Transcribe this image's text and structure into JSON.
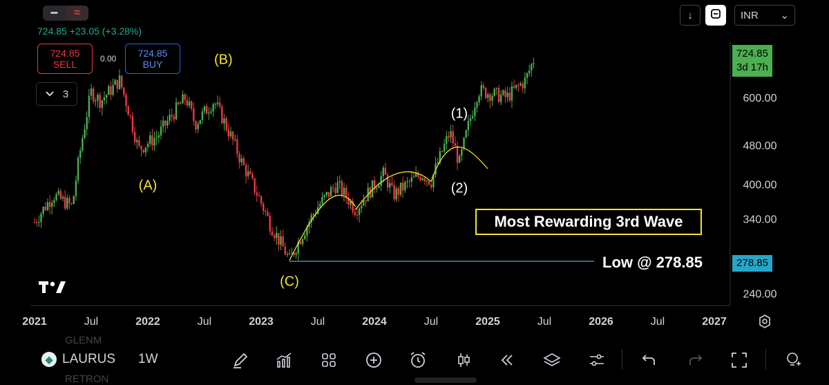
{
  "top": {
    "price_line": "724.85 +23.05 (+3.28%)",
    "sell": {
      "price": "724.85",
      "label": "SELL"
    },
    "buy": {
      "price": "724.85",
      "label": "BUY"
    },
    "spread": "0.00",
    "indicators_count": "3",
    "currency": "INR"
  },
  "badges": {
    "last_price": "724.85",
    "countdown": "3d 17h",
    "low_price": "278.85"
  },
  "annotations": {
    "A": "(A)",
    "B": "(B)",
    "C": "(C)",
    "w1": "(1)",
    "w2": "(2)",
    "rewarding": "Most Rewarding 3rd Wave",
    "low": "Low @ 278.85"
  },
  "bottom": {
    "symbol": "LAURUS",
    "interval": "1W",
    "ghost_top": "GLENM",
    "ghost_bottom": "RETRON"
  },
  "colors": {
    "up": "#4caf50",
    "down": "#f23645",
    "wave": "#f5e42c",
    "low_line": "#5aa9c7",
    "text": "#d1d4dc"
  },
  "icons": [
    "pencil-icon",
    "chart-icon",
    "grid-icon",
    "plus-icon",
    "alarm-icon",
    "candles-icon",
    "rewind-icon",
    "layers-icon",
    "sliders-icon",
    "undo-icon",
    "redo-icon",
    "fullscreen-icon",
    "bulb-icon"
  ],
  "chart_data": {
    "type": "candlestick",
    "symbol": "LAURUS",
    "interval": "1W",
    "currency": "INR",
    "scale": "log",
    "y_ticks": [
      240,
      340,
      400,
      480,
      600
    ],
    "x_ticks": [
      "2021",
      "Jul",
      "2022",
      "Jul",
      "2023",
      "Jul",
      "2024",
      "Jul",
      "2025",
      "Jul",
      "2026",
      "Jul",
      "2027"
    ],
    "last_price": 724.85,
    "low": 278.85,
    "waypoints": [
      {
        "date": "2021-01",
        "price": 335
      },
      {
        "date": "2021-03",
        "price": 380
      },
      {
        "date": "2021-05",
        "price": 360
      },
      {
        "date": "2021-07",
        "price": 615
      },
      {
        "date": "2021-08",
        "price": 590
      },
      {
        "date": "2021-10",
        "price": 650
      },
      {
        "date": "2021-12",
        "price": 470
      },
      {
        "date": "2022-02",
        "price": 500
      },
      {
        "date": "2022-05",
        "price": 600
      },
      {
        "date": "2022-06",
        "price": 530
      },
      {
        "date": "2022-08",
        "price": 590
      },
      {
        "date": "2022-11",
        "price": 440
      },
      {
        "date": "2023-02",
        "price": 330
      },
      {
        "date": "2023-04",
        "price": 280
      },
      {
        "date": "2023-07",
        "price": 360
      },
      {
        "date": "2023-09",
        "price": 400
      },
      {
        "date": "2023-11",
        "price": 355
      },
      {
        "date": "2024-02",
        "price": 420
      },
      {
        "date": "2024-03",
        "price": 380
      },
      {
        "date": "2024-06",
        "price": 420
      },
      {
        "date": "2024-07",
        "price": 405
      },
      {
        "date": "2024-09",
        "price": 510
      },
      {
        "date": "2024-10",
        "price": 440
      },
      {
        "date": "2024-12",
        "price": 620
      },
      {
        "date": "2025-03",
        "price": 600
      },
      {
        "date": "2025-05",
        "price": 650
      },
      {
        "date": "2025-06",
        "price": 725
      }
    ],
    "wave_labels": [
      {
        "text": "(A)",
        "date": "2022-01",
        "price": 400
      },
      {
        "text": "(B)",
        "date": "2022-09",
        "price": 720
      },
      {
        "text": "(C)",
        "date": "2023-04",
        "price": 255
      },
      {
        "text": "(1)",
        "date": "2024-10",
        "price": 560
      },
      {
        "text": "(2)",
        "date": "2024-10",
        "price": 395
      }
    ]
  }
}
